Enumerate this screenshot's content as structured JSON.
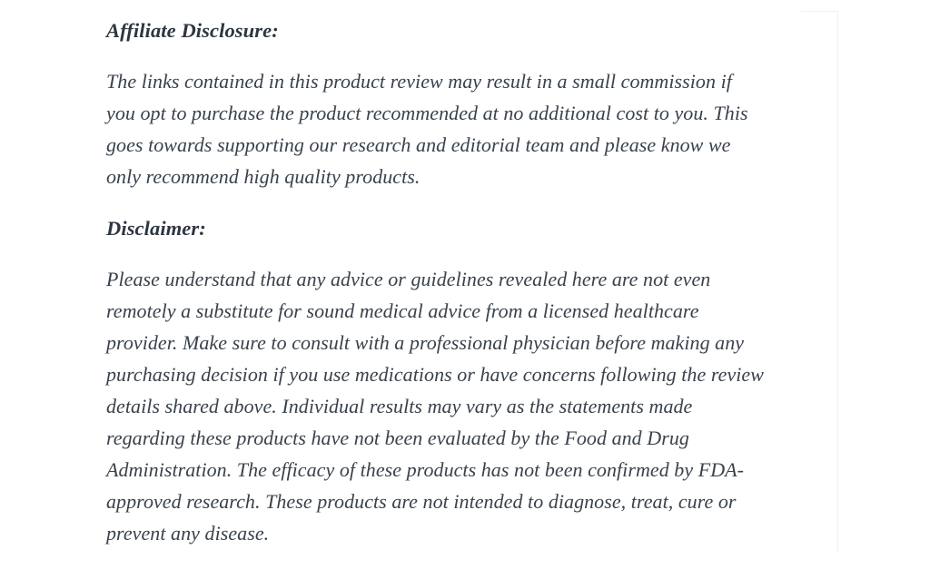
{
  "page": {
    "background_color": "#ffffff",
    "body_text_color": "#39424c",
    "heading_text_color": "#2d3641"
  },
  "content": {
    "affiliate_heading": "Affiliate Disclosure:",
    "affiliate_paragraph": "The links contained in this product review may result in a small commission if\nyou opt to purchase the product recommended at no additional cost to you. This\ngoes towards supporting our research and editorial team and please know we\nonly recommend high quality products.",
    "disclaimer_heading": "Disclaimer:",
    "disclaimer_paragraph": "Please understand that any advice or guidelines revealed here are not even\nremotely a substitute for sound medical advice from a licensed healthcare\nprovider. Make sure to consult with a professional physician before making any\npurchasing decision if you use medications or have concerns following the review\ndetails shared above. Individual results may vary as the statements made\nregarding these products have not been evaluated by the Food and Drug\nAdministration. The efficacy of these products has not been confirmed by FDA-\napproved research. These products are not intended to diagnose, treat, cure or\nprevent any disease."
  }
}
